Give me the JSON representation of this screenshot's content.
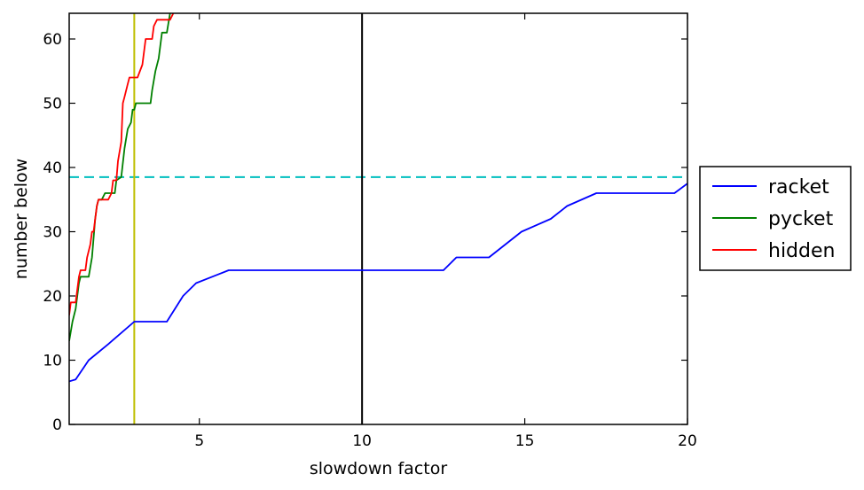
{
  "chart_data": {
    "type": "line",
    "xlabel": "slowdown factor",
    "ylabel": "number below",
    "xlim": [
      1,
      20
    ],
    "ylim": [
      0,
      64
    ],
    "grid": false,
    "legend_placement": "outside-right",
    "xticks": [
      5,
      10,
      15,
      20
    ],
    "yticks": [
      0,
      10,
      20,
      30,
      40,
      50,
      60
    ],
    "reference_lines": [
      {
        "orientation": "horizontal",
        "value": 38.5,
        "style": "dashed",
        "color": "#00bfbf"
      },
      {
        "orientation": "vertical",
        "value": 3.0,
        "style": "solid",
        "color": "#bfbf00"
      },
      {
        "orientation": "vertical",
        "value": 10.0,
        "style": "solid",
        "color": "#000000"
      }
    ],
    "series": [
      {
        "name": "racket",
        "color": "#0000ff",
        "points": [
          [
            1.0,
            6.7
          ],
          [
            1.2,
            7.0
          ],
          [
            1.6,
            10.0
          ],
          [
            2.2,
            12.5
          ],
          [
            3.0,
            16.0
          ],
          [
            4.0,
            16.0
          ],
          [
            4.5,
            20.0
          ],
          [
            4.9,
            22.0
          ],
          [
            5.5,
            23.2
          ],
          [
            5.9,
            24.0
          ],
          [
            12.5,
            24.0
          ],
          [
            12.9,
            26.0
          ],
          [
            13.9,
            26.0
          ],
          [
            14.9,
            30.0
          ],
          [
            15.8,
            32.0
          ],
          [
            16.3,
            34.0
          ],
          [
            17.2,
            36.0
          ],
          [
            19.6,
            36.0
          ],
          [
            20.0,
            37.5
          ]
        ]
      },
      {
        "name": "pycket",
        "color": "#008000",
        "points": [
          [
            1.0,
            13.0
          ],
          [
            1.1,
            16.0
          ],
          [
            1.2,
            18.0
          ],
          [
            1.3,
            22.0
          ],
          [
            1.35,
            23.0
          ],
          [
            1.6,
            23.0
          ],
          [
            1.7,
            26.0
          ],
          [
            1.8,
            32.0
          ],
          [
            1.85,
            34.0
          ],
          [
            1.9,
            35.0
          ],
          [
            2.0,
            35.0
          ],
          [
            2.1,
            36.0
          ],
          [
            2.4,
            36.0
          ],
          [
            2.45,
            38.0
          ],
          [
            2.6,
            38.5
          ],
          [
            2.7,
            43.0
          ],
          [
            2.8,
            46.0
          ],
          [
            2.9,
            47.0
          ],
          [
            2.95,
            49.0
          ],
          [
            3.0,
            49.0
          ],
          [
            3.05,
            50.0
          ],
          [
            3.5,
            50.0
          ],
          [
            3.55,
            52.0
          ],
          [
            3.65,
            55.0
          ],
          [
            3.75,
            57.0
          ],
          [
            3.85,
            61.0
          ],
          [
            4.0,
            61.0
          ],
          [
            4.1,
            64.0
          ]
        ]
      },
      {
        "name": "hidden",
        "color": "#ff0000",
        "points": [
          [
            1.0,
            17.0
          ],
          [
            1.05,
            19.0
          ],
          [
            1.2,
            19.0
          ],
          [
            1.3,
            23.0
          ],
          [
            1.35,
            24.0
          ],
          [
            1.5,
            24.0
          ],
          [
            1.55,
            26.0
          ],
          [
            1.65,
            28.0
          ],
          [
            1.7,
            30.0
          ],
          [
            1.75,
            30.0
          ],
          [
            1.85,
            34.0
          ],
          [
            1.9,
            35.0
          ],
          [
            2.2,
            35.0
          ],
          [
            2.3,
            36.0
          ],
          [
            2.35,
            38.0
          ],
          [
            2.45,
            38.0
          ],
          [
            2.5,
            41.0
          ],
          [
            2.6,
            44.0
          ],
          [
            2.65,
            50.0
          ],
          [
            2.7,
            51.0
          ],
          [
            2.8,
            53.0
          ],
          [
            2.85,
            54.0
          ],
          [
            3.1,
            54.0
          ],
          [
            3.25,
            56.0
          ],
          [
            3.35,
            60.0
          ],
          [
            3.55,
            60.0
          ],
          [
            3.6,
            62.0
          ],
          [
            3.7,
            63.0
          ],
          [
            4.1,
            63.0
          ],
          [
            4.2,
            64.0
          ]
        ]
      }
    ]
  }
}
